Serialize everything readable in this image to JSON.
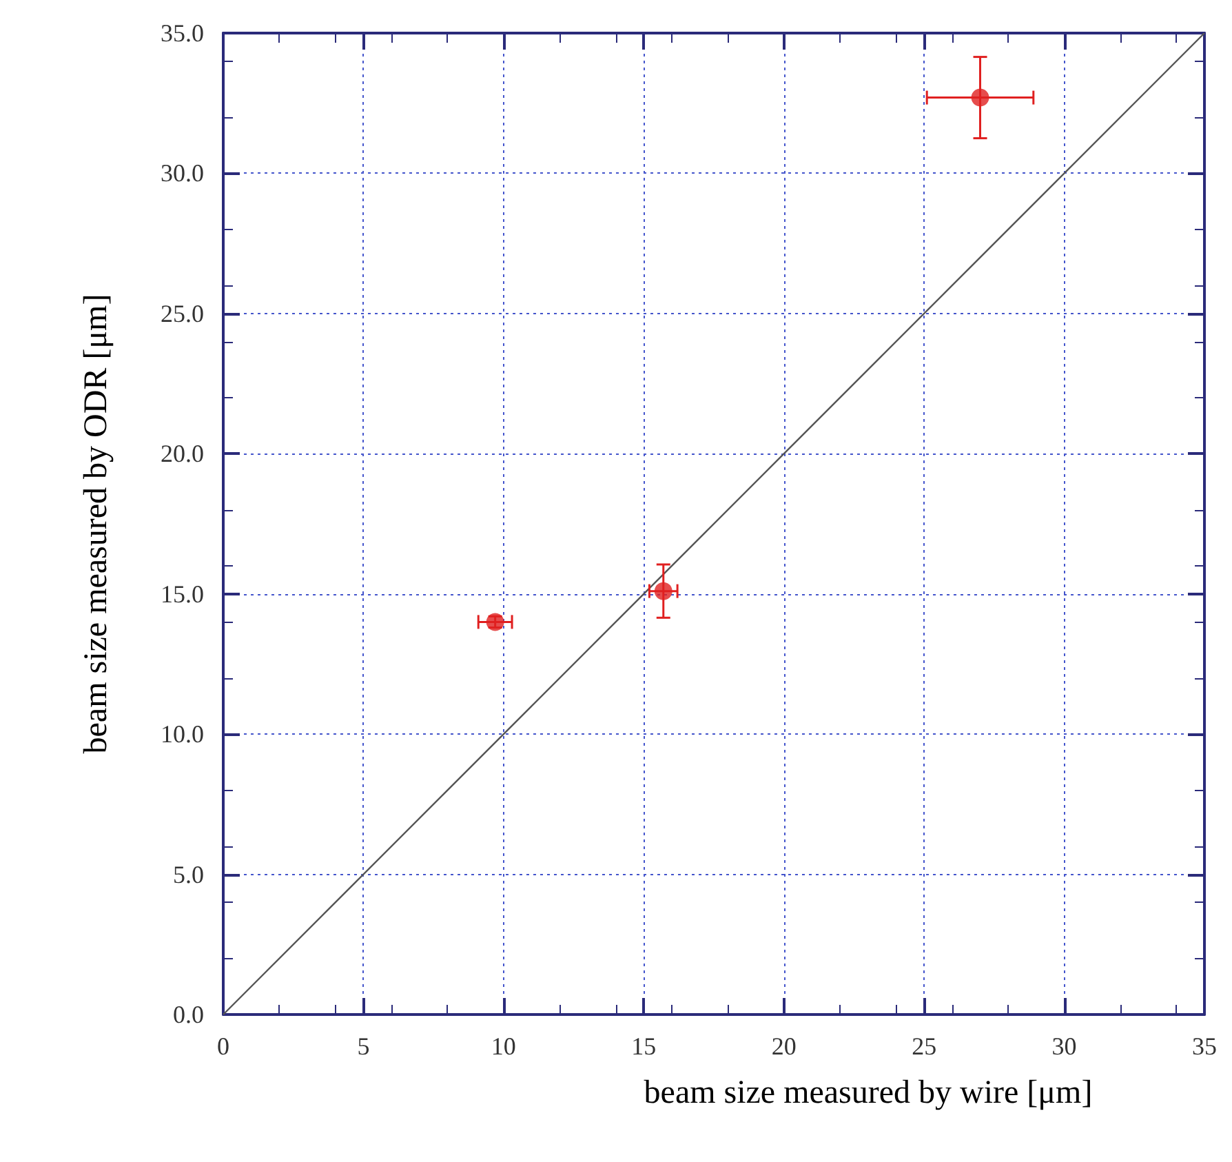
{
  "chart_data": {
    "type": "scatter",
    "xlabel": "beam size measured by wire [μm]",
    "ylabel": "beam size measured by ODR [μm]",
    "xlim": [
      0,
      35
    ],
    "xticks": [
      0,
      5,
      10,
      15,
      20,
      25,
      30,
      35
    ],
    "ylim": [
      0,
      35
    ],
    "yticks": [
      {
        "value": 0,
        "label": "0.0"
      },
      {
        "value": 5,
        "label": "5.0"
      },
      {
        "value": 10,
        "label": "10.0"
      },
      {
        "value": 15,
        "label": "15.0"
      },
      {
        "value": 20,
        "label": "20.0"
      },
      {
        "value": 25,
        "label": "25.0"
      },
      {
        "value": 30,
        "label": "30.0"
      },
      {
        "value": 35,
        "label": "35.0"
      }
    ],
    "grid": true,
    "series": [
      {
        "marker": "circle",
        "color": "#e02020",
        "x": [
          9.7,
          15.7,
          27.0
        ],
        "values": [
          14.0,
          15.1,
          32.7
        ],
        "xerrors": [
          0.6,
          0.5,
          1.9
        ],
        "errors": [
          0.2,
          0.95,
          1.45
        ]
      },
      {
        "type": "line",
        "marker": "none",
        "color": "#555555",
        "x": [
          0,
          35
        ],
        "values": [
          0,
          35
        ]
      }
    ]
  }
}
